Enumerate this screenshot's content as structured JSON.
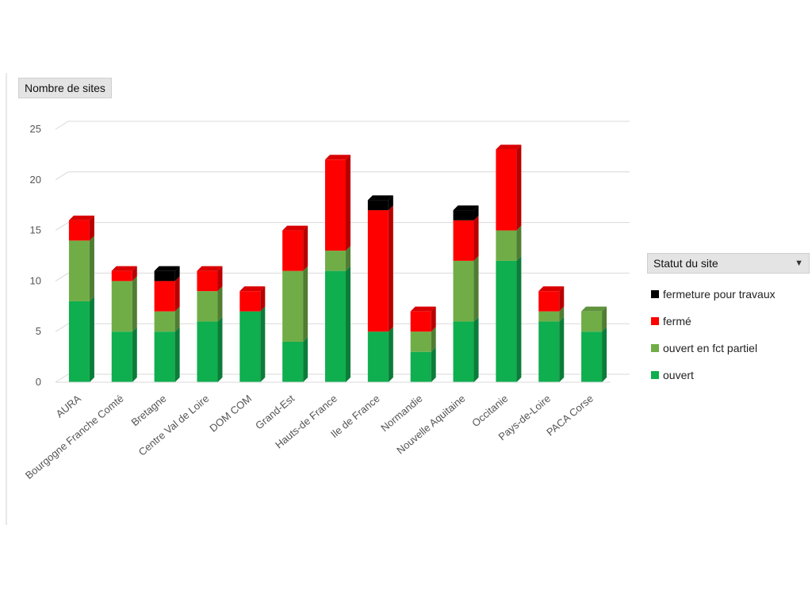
{
  "chart_data": {
    "type": "bar",
    "stacked": true,
    "three_d": true,
    "value_axis_field": "Nombre de sites",
    "legend_field": "Statut du site",
    "categories": [
      "AURA",
      "Bourgogne Franche Comté",
      "Bretagne",
      "Centre Val de Loire",
      "DOM COM",
      "Grand-Est",
      "Hauts-de France",
      "Ile de France",
      "Normandie",
      "Nouvelle Aquitaine",
      "Occitanie",
      "Pays-de-Loire",
      "PACA Corse"
    ],
    "series": [
      {
        "name": "ouvert",
        "color": "#0fae4f",
        "values": [
          8,
          5,
          5,
          6,
          7,
          4,
          11,
          5,
          3,
          6,
          12,
          6,
          5
        ]
      },
      {
        "name": "ouvert en fct partiel",
        "color": "#70ad47",
        "values": [
          6,
          5,
          2,
          3,
          0,
          7,
          2,
          0,
          2,
          6,
          3,
          1,
          2
        ]
      },
      {
        "name": "fermé",
        "color": "#ff0000",
        "values": [
          2,
          1,
          3,
          2,
          2,
          4,
          9,
          12,
          2,
          4,
          8,
          2,
          0
        ]
      },
      {
        "name": "fermeture pour travaux",
        "color": "#000000",
        "values": [
          0,
          0,
          1,
          0,
          0,
          0,
          0,
          1,
          0,
          1,
          0,
          0,
          0
        ]
      }
    ],
    "legend_order": [
      "fermeture pour travaux",
      "fermé",
      "ouvert en fct partiel",
      "ouvert"
    ],
    "yticks": [
      0,
      5,
      10,
      15,
      20,
      25
    ],
    "ylim": [
      0,
      25
    ],
    "grid": true,
    "legend_position": "right"
  }
}
